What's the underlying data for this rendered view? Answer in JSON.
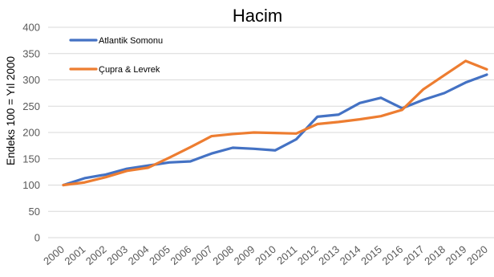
{
  "chart_data": {
    "type": "line",
    "title": "Hacim",
    "xlabel": "",
    "ylabel": "Endeks 100 = Yıl 2000",
    "ylim": [
      0,
      400
    ],
    "yticks": [
      "0",
      "50",
      "100",
      "150",
      "200",
      "250",
      "300",
      "350",
      "400"
    ],
    "grid": true,
    "legend": "top-left",
    "categories": [
      "2000",
      "2001",
      "2002",
      "2003",
      "2004",
      "2005",
      "2006",
      "2007",
      "2008",
      "2009",
      "2010",
      "2011",
      "2012",
      "2013",
      "2014",
      "2015",
      "2016",
      "2017",
      "2018",
      "2019",
      "2020"
    ],
    "series": [
      {
        "name": "Atlantik Somonu",
        "color": "#4472c4",
        "values": [
          100,
          113,
          120,
          131,
          137,
          143,
          145,
          160,
          171,
          169,
          166,
          187,
          230,
          234,
          256,
          266,
          246,
          262,
          275,
          295,
          310
        ]
      },
      {
        "name": "Çupra & Levrek",
        "color": "#ed7d31",
        "values": [
          100,
          105,
          115,
          127,
          133,
          152,
          172,
          193,
          197,
          200,
          199,
          198,
          216,
          220,
          225,
          231,
          243,
          282,
          309,
          336,
          320
        ]
      }
    ]
  }
}
